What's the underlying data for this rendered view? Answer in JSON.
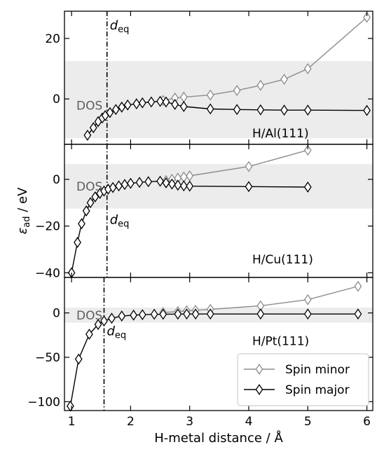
{
  "chart_data": {
    "type": "line",
    "xlabel": "H-metal distance / Å",
    "ylabel": "ε",
    "ylabel_sub": "ad",
    "ylabel_unit": " / eV",
    "xlim": [
      0.88,
      6.1
    ],
    "xticks": [
      1,
      2,
      3,
      4,
      5,
      6
    ],
    "legend": {
      "placement": "bottom-right",
      "entries": [
        {
          "name": "Spin minor",
          "color": "#8c8c8c"
        },
        {
          "name": "Spin major",
          "color": "#000000"
        }
      ]
    },
    "dos_label": "DOS",
    "deq_label": "d",
    "deq_sub": "eq",
    "panels": [
      {
        "label": "H/Al(111)",
        "ylim": [
          -15,
          29
        ],
        "yticks": [
          20,
          0
        ],
        "dos_band": [
          -13,
          12.5
        ],
        "d_eq": 1.6,
        "series": [
          {
            "name": "Spin minor",
            "color": "#8c8c8c",
            "x": [
              2.55,
              2.75,
              2.9,
              3.35,
              3.8,
              4.2,
              4.6,
              5.0,
              6.0
            ],
            "y": [
              -0.5,
              0.3,
              0.6,
              1.3,
              2.8,
              4.5,
              6.5,
              10.0,
              27.0
            ]
          },
          {
            "name": "Spin major",
            "color": "#000000",
            "x": [
              1.27,
              1.37,
              1.45,
              1.52,
              1.57,
              1.65,
              1.75,
              1.85,
              1.95,
              2.1,
              2.2,
              2.35,
              2.5,
              2.6,
              2.75,
              2.9,
              3.35,
              3.8,
              4.2,
              4.6,
              5.0,
              6.0
            ],
            "y": [
              -12.0,
              -9.5,
              -7.5,
              -6.3,
              -5.5,
              -4.5,
              -3.5,
              -2.7,
              -2.0,
              -1.6,
              -1.3,
              -1.0,
              -0.8,
              -1.0,
              -1.8,
              -2.5,
              -3.3,
              -3.5,
              -3.6,
              -3.7,
              -3.7,
              -3.8
            ]
          }
        ]
      },
      {
        "label": "H/Cu(111)",
        "ylim": [
          -42,
          15
        ],
        "yticks": [
          0,
          -20,
          -40
        ],
        "dos_band": [
          -12.5,
          6.5
        ],
        "d_eq": 1.6,
        "series": [
          {
            "name": "Spin minor",
            "color": "#8c8c8c",
            "x": [
              2.6,
              2.7,
              2.8,
              2.9,
              3.0,
              4.0,
              5.0
            ],
            "y": [
              -0.5,
              0.0,
              0.5,
              1.0,
              1.5,
              5.5,
              12.5
            ]
          },
          {
            "name": "Spin major",
            "color": "#000000",
            "x": [
              1.0,
              1.1,
              1.17,
              1.25,
              1.32,
              1.4,
              1.48,
              1.55,
              1.62,
              1.7,
              1.8,
              1.9,
              2.0,
              2.15,
              2.3,
              2.5,
              2.6,
              2.7,
              2.8,
              2.9,
              3.0,
              4.0,
              5.0
            ],
            "y": [
              -40.0,
              -27.0,
              -19.0,
              -13.5,
              -10.0,
              -7.5,
              -6.0,
              -5.0,
              -4.2,
              -3.5,
              -2.8,
              -2.2,
              -1.7,
              -1.3,
              -1.0,
              -0.8,
              -1.5,
              -2.0,
              -2.5,
              -2.8,
              -2.9,
              -3.1,
              -3.3
            ]
          }
        ]
      },
      {
        "label": "H/Pt(111)",
        "ylim": [
          -110,
          40
        ],
        "yticks": [
          0,
          -50,
          -100
        ],
        "dos_band": [
          -11,
          6
        ],
        "d_eq": 1.55,
        "series": [
          {
            "name": "Spin minor",
            "color": "#8c8c8c",
            "x": [
              2.55,
              2.8,
              2.95,
              3.1,
              3.35,
              4.2,
              5.0,
              5.85
            ],
            "y": [
              0.5,
              1.5,
              2.5,
              3.0,
              4.0,
              8.0,
              15.0,
              30.0
            ]
          },
          {
            "name": "Spin major",
            "color": "#000000",
            "x": [
              0.98,
              1.12,
              1.3,
              1.45,
              1.55,
              1.68,
              1.85,
              2.05,
              2.2,
              2.4,
              2.55,
              2.8,
              2.95,
              3.1,
              3.35,
              4.2,
              5.0,
              5.85
            ],
            "y": [
              -105.0,
              -52.0,
              -24.0,
              -13.0,
              -9.0,
              -6.0,
              -3.5,
              -2.5,
              -2.0,
              -1.5,
              -1.5,
              -1.3,
              -1.2,
              -1.2,
              -1.2,
              -1.2,
              -1.2,
              -1.2
            ]
          }
        ]
      }
    ]
  }
}
